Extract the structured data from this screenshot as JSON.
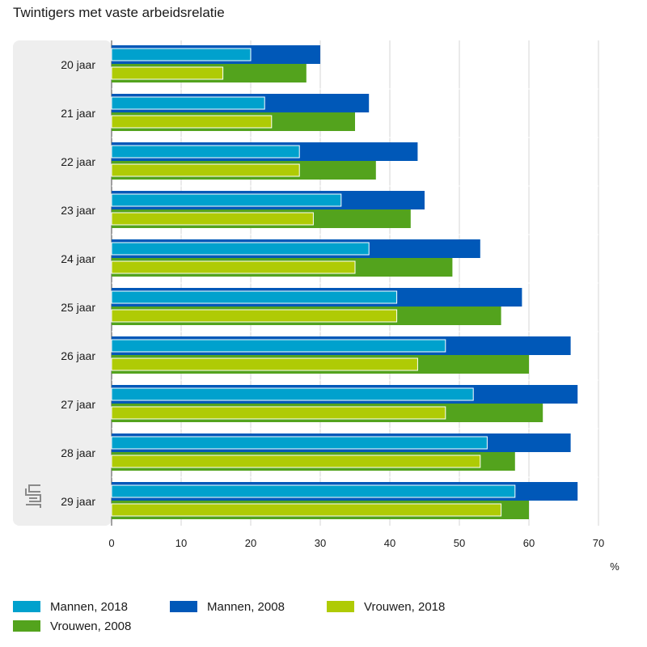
{
  "chart_data": {
    "type": "bar",
    "orientation": "horizontal",
    "title": "Twintigers met vaste arbeidsrelatie",
    "xlabel": "%",
    "ylabel": "",
    "xlim": [
      0,
      70
    ],
    "xticks": [
      "0",
      "10",
      "20",
      "30",
      "40",
      "50",
      "60",
      "70"
    ],
    "grid": true,
    "legend_position": "bottom",
    "categories": [
      "20 jaar",
      "21 jaar",
      "22 jaar",
      "23 jaar",
      "24 jaar",
      "25 jaar",
      "26 jaar",
      "27 jaar",
      "28 jaar",
      "29 jaar"
    ],
    "series": [
      {
        "name": "Mannen, 2018",
        "color": "#00a1cd",
        "values": [
          20,
          22,
          27,
          33,
          37,
          41,
          48,
          52,
          54,
          58
        ]
      },
      {
        "name": "Mannen, 2008",
        "color": "#0058b8",
        "values": [
          30,
          37,
          44,
          45,
          53,
          59,
          66,
          67,
          66,
          67
        ]
      },
      {
        "name": "Vrouwen, 2018",
        "color": "#afcb05",
        "values": [
          16,
          23,
          27,
          29,
          35,
          41,
          44,
          48,
          53,
          56
        ]
      },
      {
        "name": "Vrouwen, 2008",
        "color": "#53a31d",
        "values": [
          28,
          35,
          38,
          43,
          49,
          56,
          60,
          62,
          58,
          60
        ]
      }
    ]
  },
  "logo": {
    "text": "cbs"
  }
}
